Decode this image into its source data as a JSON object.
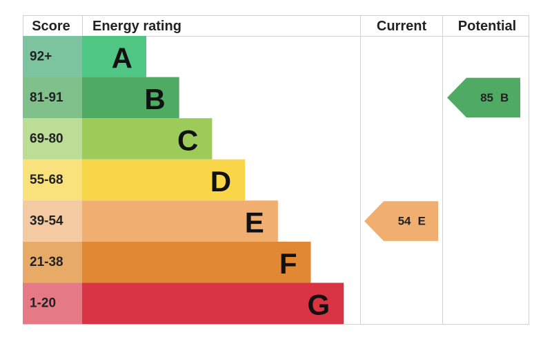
{
  "headers": {
    "score": "Score",
    "rating": "Energy rating",
    "current": "Current",
    "potential": "Potential"
  },
  "bands": [
    {
      "range": "92+",
      "letter": "A",
      "color": "#50c685",
      "light": "#7cc4a0"
    },
    {
      "range": "81-91",
      "letter": "B",
      "color": "#4fab64",
      "light": "#7fc08b"
    },
    {
      "range": "69-80",
      "letter": "C",
      "color": "#9ccb5a",
      "light": "#bbdd96"
    },
    {
      "range": "55-68",
      "letter": "D",
      "color": "#f8d648",
      "light": "#f9e27c"
    },
    {
      "range": "39-54",
      "letter": "E",
      "color": "#f0ae71",
      "light": "#f4caa3"
    },
    {
      "range": "21-38",
      "letter": "F",
      "color": "#e08834",
      "light": "#e8aa67"
    },
    {
      "range": "1-20",
      "letter": "G",
      "color": "#d93444",
      "light": "#e57a86"
    }
  ],
  "current": {
    "score": 54,
    "rating": "E"
  },
  "potential": {
    "score": 85,
    "rating": "B"
  }
}
